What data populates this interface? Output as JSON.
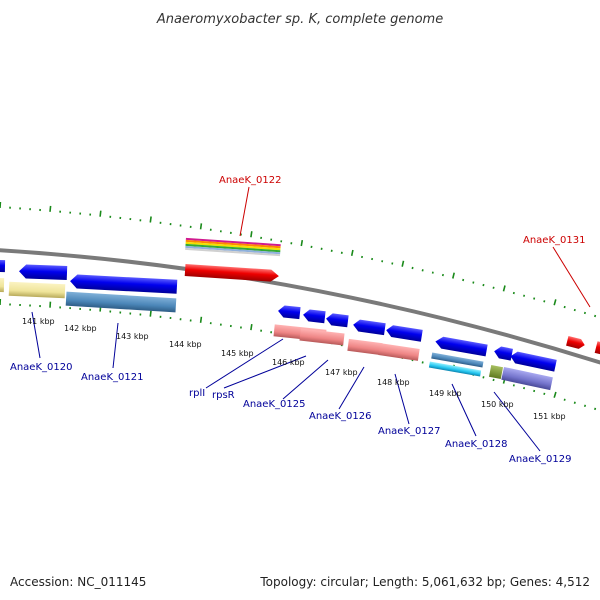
{
  "title": "Anaeromyxobacter sp. K, complete genome",
  "footer": {
    "accession": "Accession: NC_011145",
    "summary": "Topology: circular; Length: 5,061,632 bp; Genes: 4,512"
  },
  "ruler": {
    "ticks": [
      "141 kbp",
      "142 kbp",
      "143 kbp",
      "144 kbp",
      "145 kbp",
      "146 kbp",
      "147 kbp",
      "148 kbp",
      "149 kbp",
      "150 kbp",
      "151 kbp"
    ]
  },
  "labels": {
    "top": [
      "AnaeK_0122",
      "AnaeK_0131"
    ],
    "bottom": [
      "AnaeK_0120",
      "AnaeK_0121",
      "rplI",
      "rpsR",
      "AnaeK_0125",
      "AnaeK_0126",
      "AnaeK_0127",
      "AnaeK_0128",
      "AnaeK_0129"
    ]
  },
  "colors": {
    "forward_label": "#cc0000",
    "reverse_label": "#000099",
    "backbone": "#808080",
    "dots": "#1a8a1a"
  }
}
